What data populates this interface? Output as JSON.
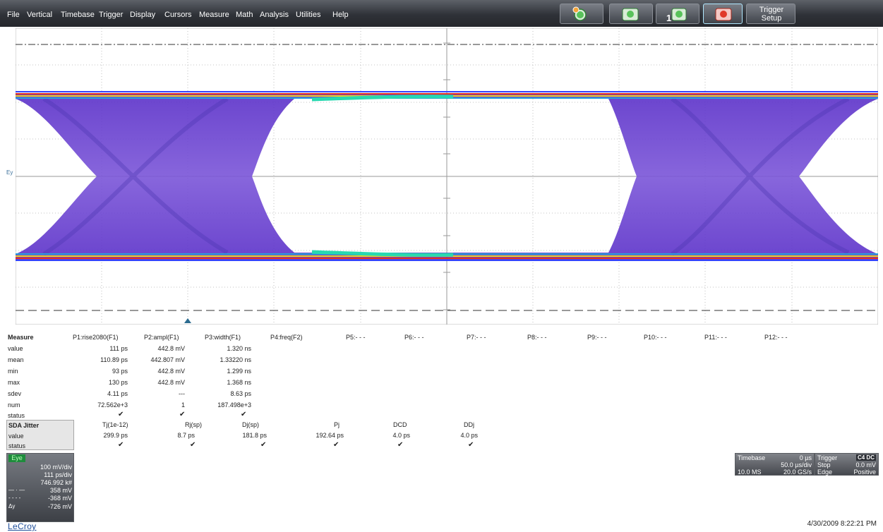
{
  "menu": [
    "File",
    "Vertical",
    "Timebase",
    "Trigger",
    "Display",
    "Cursors",
    "Measure",
    "Math",
    "Analysis",
    "Utilities",
    "Help"
  ],
  "toolbar": {
    "trigger_setup_label": "Trigger\nSetup",
    "buttons": [
      "auto-setup-icon",
      "normal-trigger-icon",
      "single-trigger-icon",
      "stop-trigger-icon"
    ],
    "colors": {
      "green": "#58c25a",
      "red": "#e03a2a"
    }
  },
  "display": {
    "trace_label": "Ey"
  },
  "measure": {
    "header": "Measure",
    "params": [
      "P1:rise2080(F1)",
      "P2:ampl(F1)",
      "P3:width(F1)",
      "P4:freq(F2)",
      "P5:- - -",
      "P6:- - -",
      "P7:- - -",
      "P8:- - -",
      "P9:- - -",
      "P10:- - -",
      "P11:- - -",
      "P12:- - -"
    ],
    "row_labels": [
      "value",
      "mean",
      "min",
      "max",
      "sdev",
      "num",
      "status"
    ],
    "columns": [
      [
        "111 ps",
        "110.89 ps",
        "93 ps",
        "130 ps",
        "4.11 ps",
        "72.562e+3"
      ],
      [
        "442.8 mV",
        "442.807 mV",
        "442.8 mV",
        "442.8 mV",
        "---",
        "1"
      ],
      [
        "1.320 ns",
        "1.33220 ns",
        "1.299 ns",
        "1.368 ns",
        "8.63 ps",
        "187.498e+3"
      ]
    ],
    "status_check": "✔"
  },
  "sda": {
    "header": "SDA Jitter",
    "row_labels": [
      "value",
      "status"
    ],
    "params": [
      "Tj(1e-12)",
      "Rj(sp)",
      "Dj(sp)",
      "Pj",
      "DCD",
      "DDj"
    ],
    "values": [
      "299.9 ps",
      "8.7 ps",
      "181.8 ps",
      "192.64 ps",
      "4.0 ps",
      "4.0 ps"
    ]
  },
  "eye": {
    "tag": "Eye",
    "vdiv": "100 mV/div",
    "hdiv": "111 ps/div",
    "count": "746.992 k#",
    "cursor1": "358 mV",
    "cursor2": "-368 mV",
    "delta_label": "Δy",
    "delta": "-726 mV"
  },
  "timebase": {
    "label": "Timebase",
    "delay": "0 µs",
    "per_div": "50.0 µs/div",
    "memory": "10.0 MS",
    "rate": "20.0 GS/s"
  },
  "trigger": {
    "label": "Trigger",
    "badge": "C4 DC",
    "mode": "Stop",
    "level": "0.0 mV",
    "type": "Edge",
    "slope": "Positive"
  },
  "brand": "LeCroy",
  "timestamp": "4/30/2009 8:22:21 PM"
}
